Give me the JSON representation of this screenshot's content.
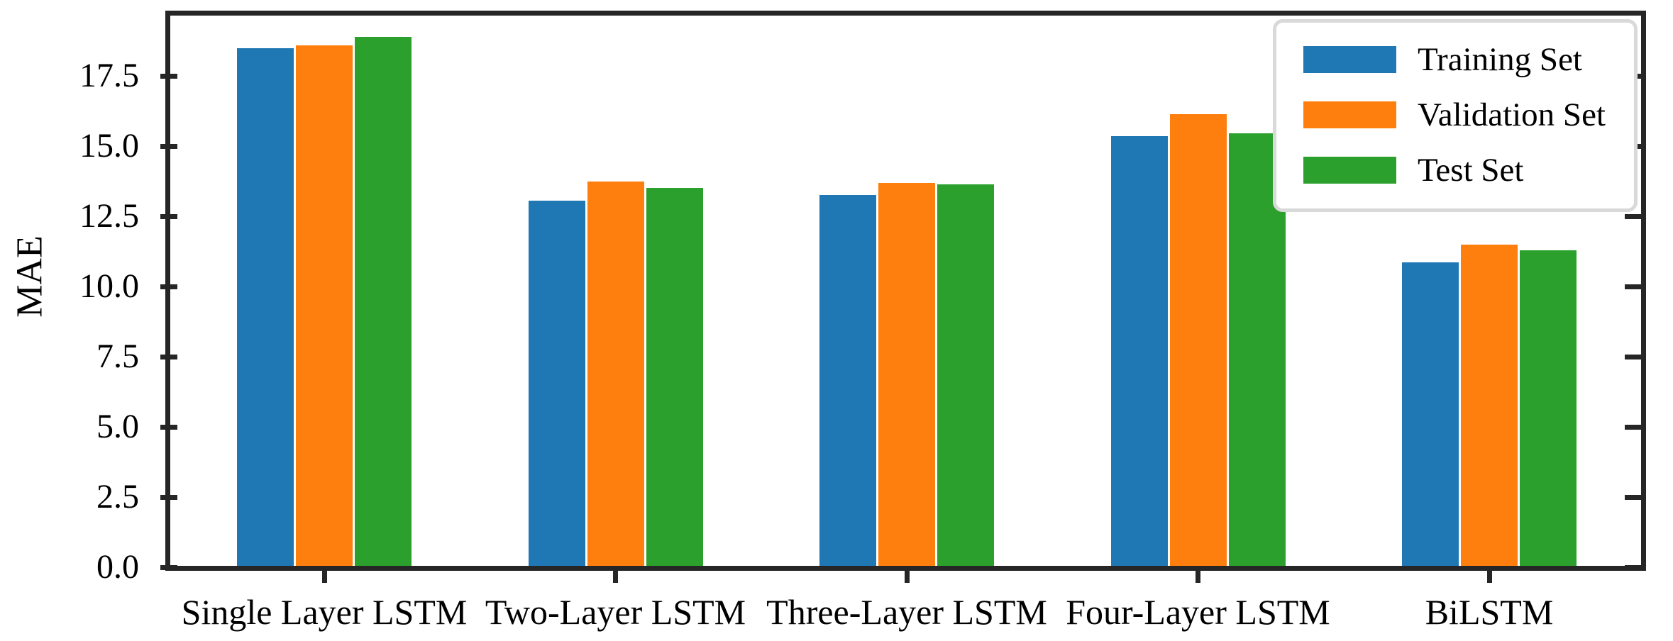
{
  "chart_data": {
    "type": "bar",
    "title": "",
    "xlabel": "",
    "ylabel": "MAE",
    "categories": [
      "Single Layer LSTM",
      "Two-Layer LSTM",
      "Three-Layer LSTM",
      "Four-Layer LSTM",
      "BiLSTM"
    ],
    "series": [
      {
        "name": "Training Set",
        "color": "#1f77b4",
        "values": [
          18.45,
          13.0,
          13.2,
          15.3,
          10.8
        ]
      },
      {
        "name": "Validation Set",
        "color": "#ff7f0e",
        "values": [
          18.55,
          13.7,
          13.65,
          16.1,
          11.45
        ]
      },
      {
        "name": "Test Set",
        "color": "#2ca02c",
        "values": [
          18.85,
          13.45,
          13.6,
          15.4,
          11.25
        ]
      }
    ],
    "yticks": [
      "0.0",
      "2.5",
      "5.0",
      "7.5",
      "10.0",
      "12.5",
      "15.0",
      "17.5"
    ],
    "ylim": [
      0,
      19.6
    ],
    "grid": false,
    "legend_position": "upper right",
    "colors": {
      "axis": "#262626",
      "background": "#ffffff",
      "legend_border": "#d9d9d9"
    }
  }
}
